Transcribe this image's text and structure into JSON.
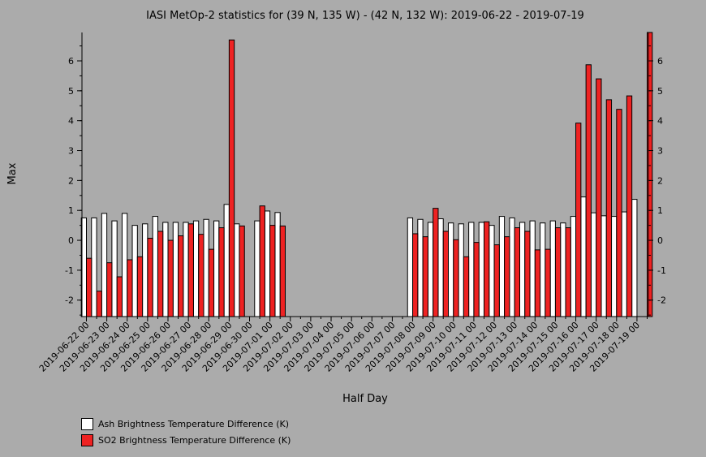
{
  "chart_data": {
    "type": "bar",
    "title": "IASI MetOp-2 statistics for (39 N, 135 W) - (42 N, 132 W): 2019-06-22 - 2019-07-19",
    "xlabel": "Half Day",
    "ylabel": "Max",
    "ylim": [
      -2.55,
      6.95
    ],
    "yticks": [
      -2,
      -1,
      0,
      1,
      2,
      3,
      4,
      5,
      6
    ],
    "categories": [
      "2019-06-22 00",
      "2019-06-22 12",
      "2019-06-23 00",
      "2019-06-23 12",
      "2019-06-24 00",
      "2019-06-24 12",
      "2019-06-25 00",
      "2019-06-25 12",
      "2019-06-26 00",
      "2019-06-26 12",
      "2019-06-27 00",
      "2019-06-27 12",
      "2019-06-28 00",
      "2019-06-28 12",
      "2019-06-29 00",
      "2019-06-29 12",
      "2019-06-30 00",
      "2019-06-30 12",
      "2019-07-01 00",
      "2019-07-01 12",
      "2019-07-02 00",
      "2019-07-02 12",
      "2019-07-03 00",
      "2019-07-03 12",
      "2019-07-04 00",
      "2019-07-04 12",
      "2019-07-05 00",
      "2019-07-05 12",
      "2019-07-06 00",
      "2019-07-06 12",
      "2019-07-07 00",
      "2019-07-07 12",
      "2019-07-08 00",
      "2019-07-08 12",
      "2019-07-09 00",
      "2019-07-09 12",
      "2019-07-10 00",
      "2019-07-10 12",
      "2019-07-11 00",
      "2019-07-11 12",
      "2019-07-12 00",
      "2019-07-12 12",
      "2019-07-13 00",
      "2019-07-13 12",
      "2019-07-14 00",
      "2019-07-14 12",
      "2019-07-15 00",
      "2019-07-15 12",
      "2019-07-16 00",
      "2019-07-16 12",
      "2019-07-17 00",
      "2019-07-17 12",
      "2019-07-18 00",
      "2019-07-18 12",
      "2019-07-19 00",
      "2019-07-19 12"
    ],
    "tick_labels": [
      "2019-06-22 00",
      "2019-06-23 00",
      "2019-06-24 00",
      "2019-06-25 00",
      "2019-06-26 00",
      "2019-06-27 00",
      "2019-06-28 00",
      "2019-06-29 00",
      "2019-06-30 00",
      "2019-07-01 00",
      "2019-07-02 00",
      "2019-07-03 00",
      "2019-07-04 00",
      "2019-07-05 00",
      "2019-07-06 00",
      "2019-07-07 00",
      "2019-07-08 00",
      "2019-07-09 00",
      "2019-07-10 00",
      "2019-07-11 00",
      "2019-07-12 00",
      "2019-07-13 00",
      "2019-07-14 00",
      "2019-07-15 00",
      "2019-07-16 00",
      "2019-07-17 00",
      "2019-07-18 00",
      "2019-07-19 00"
    ],
    "series": [
      {
        "name": "Ash Brightness Temperature Difference (K)",
        "color": "#ffffff",
        "values": [
          0.75,
          0.75,
          0.9,
          0.65,
          0.9,
          0.5,
          0.55,
          0.8,
          0.6,
          0.6,
          0.6,
          0.65,
          0.7,
          0.65,
          1.2,
          0.55,
          null,
          0.65,
          0.98,
          0.93,
          null,
          null,
          null,
          null,
          null,
          null,
          null,
          null,
          null,
          null,
          null,
          null,
          0.75,
          0.7,
          0.6,
          0.72,
          0.58,
          0.55,
          0.6,
          0.6,
          0.5,
          0.8,
          0.75,
          0.6,
          0.65,
          0.58,
          0.65,
          0.58,
          0.8,
          1.45,
          0.92,
          0.82,
          0.8,
          0.95,
          1.37,
          null
        ]
      },
      {
        "name": "SO2 Brightness Temperature Difference (K)",
        "color": "#ee2222",
        "values": [
          -0.6,
          -1.7,
          -0.75,
          -1.22,
          -0.65,
          -0.55,
          0.07,
          0.3,
          0.0,
          0.15,
          0.55,
          0.2,
          -0.3,
          0.42,
          6.7,
          0.48,
          null,
          1.15,
          0.5,
          0.48,
          null,
          null,
          null,
          null,
          null,
          null,
          null,
          null,
          null,
          null,
          null,
          null,
          0.22,
          0.12,
          1.07,
          0.3,
          0.02,
          -0.55,
          -0.07,
          0.62,
          -0.15,
          0.12,
          0.42,
          0.3,
          -0.32,
          -0.3,
          0.42,
          0.42,
          3.92,
          5.87,
          5.4,
          4.7,
          4.38,
          4.83,
          null,
          6.95
        ]
      }
    ],
    "grid": false,
    "legend_position": "bottom-left"
  }
}
